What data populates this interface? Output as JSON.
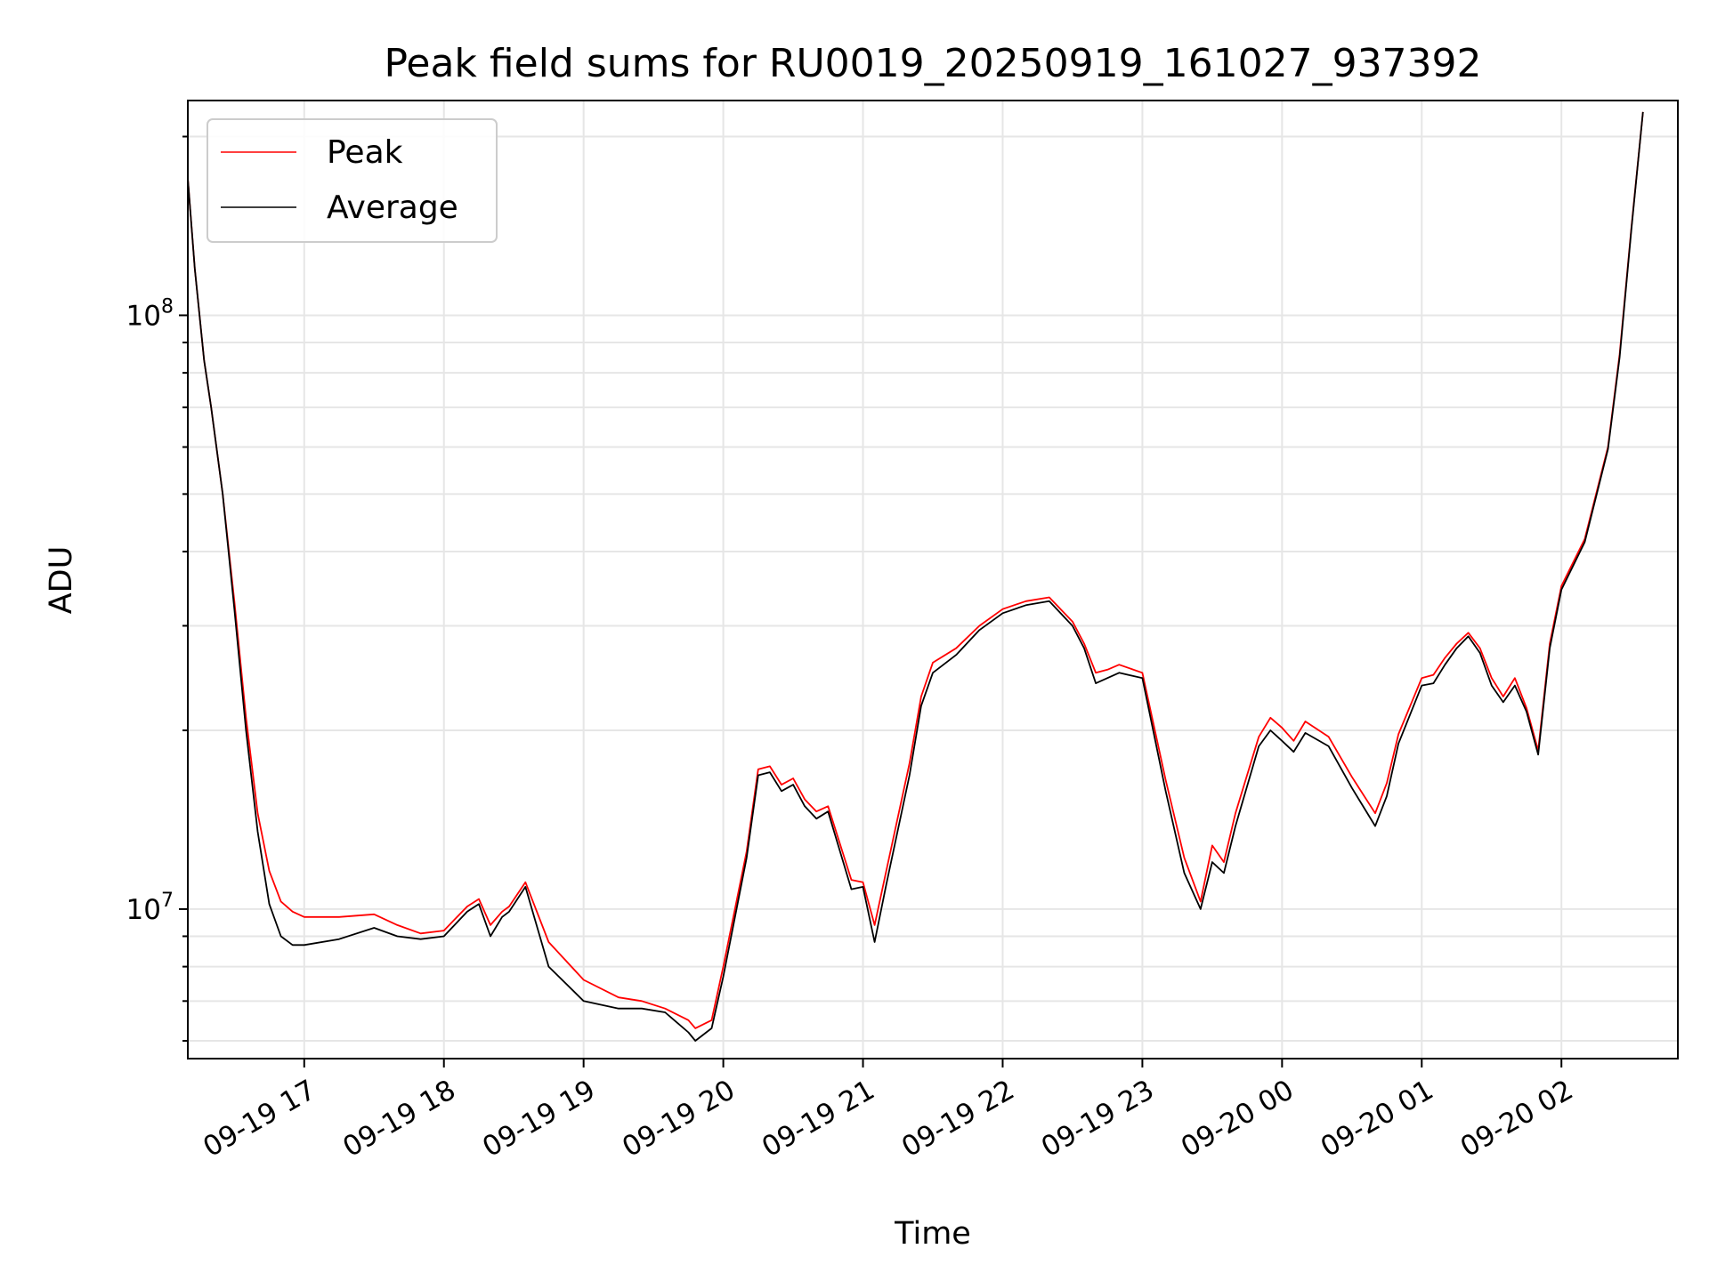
{
  "chart_data": {
    "type": "line",
    "title": "Peak field sums for RU0019_20250919_161027_937392",
    "xlabel": "Time",
    "ylabel": "ADU",
    "y_scale": "log",
    "grid": true,
    "legend_position": "top-left",
    "xlim": [
      "2025-09-19 16:10",
      "2025-09-20 02:50"
    ],
    "ylim": [
      5600000,
      230000000
    ],
    "x_tick_labels": [
      "09-19 17",
      "09-19 18",
      "09-19 19",
      "09-19 20",
      "09-19 21",
      "09-19 22",
      "09-19 23",
      "09-20 00",
      "09-20 01",
      "09-20 02"
    ],
    "y_tick_labels": [
      "10^7",
      "10^8"
    ],
    "series": [
      {
        "name": "Peak",
        "color": "#ff0000",
        "x": [
          "2025-09-19 16:10",
          "2025-09-19 16:13",
          "2025-09-19 16:17",
          "2025-09-19 16:20",
          "2025-09-19 16:25",
          "2025-09-19 16:30",
          "2025-09-19 16:35",
          "2025-09-19 16:40",
          "2025-09-19 16:45",
          "2025-09-19 16:50",
          "2025-09-19 16:55",
          "2025-09-19 17:00",
          "2025-09-19 17:15",
          "2025-09-19 17:30",
          "2025-09-19 17:40",
          "2025-09-19 17:50",
          "2025-09-19 18:00",
          "2025-09-19 18:10",
          "2025-09-19 18:15",
          "2025-09-19 18:20",
          "2025-09-19 18:25",
          "2025-09-19 18:28",
          "2025-09-19 18:35",
          "2025-09-19 18:45",
          "2025-09-19 19:00",
          "2025-09-19 19:15",
          "2025-09-19 19:25",
          "2025-09-19 19:35",
          "2025-09-19 19:45",
          "2025-09-19 19:48",
          "2025-09-19 19:55",
          "2025-09-19 20:00",
          "2025-09-19 20:10",
          "2025-09-19 20:15",
          "2025-09-19 20:20",
          "2025-09-19 20:25",
          "2025-09-19 20:30",
          "2025-09-19 20:35",
          "2025-09-19 20:40",
          "2025-09-19 20:45",
          "2025-09-19 20:55",
          "2025-09-19 21:00",
          "2025-09-19 21:05",
          "2025-09-19 21:10",
          "2025-09-19 21:20",
          "2025-09-19 21:25",
          "2025-09-19 21:30",
          "2025-09-19 21:40",
          "2025-09-19 21:50",
          "2025-09-19 22:00",
          "2025-09-19 22:10",
          "2025-09-19 22:20",
          "2025-09-19 22:30",
          "2025-09-19 22:35",
          "2025-09-19 22:40",
          "2025-09-19 22:45",
          "2025-09-19 22:50",
          "2025-09-19 23:00",
          "2025-09-19 23:10",
          "2025-09-19 23:18",
          "2025-09-19 23:25",
          "2025-09-19 23:30",
          "2025-09-19 23:35",
          "2025-09-19 23:40",
          "2025-09-19 23:50",
          "2025-09-19 23:55",
          "2025-09-20 00:00",
          "2025-09-20 00:05",
          "2025-09-20 00:10",
          "2025-09-20 00:20",
          "2025-09-20 00:30",
          "2025-09-20 00:40",
          "2025-09-20 00:45",
          "2025-09-20 00:50",
          "2025-09-20 01:00",
          "2025-09-20 01:05",
          "2025-09-20 01:10",
          "2025-09-20 01:15",
          "2025-09-20 01:20",
          "2025-09-20 01:25",
          "2025-09-20 01:30",
          "2025-09-20 01:35",
          "2025-09-20 01:40",
          "2025-09-20 01:45",
          "2025-09-20 01:50",
          "2025-09-20 01:55",
          "2025-09-20 02:00",
          "2025-09-20 02:10",
          "2025-09-20 02:20",
          "2025-09-20 02:25",
          "2025-09-20 02:30",
          "2025-09-20 02:35"
        ],
        "values": [
          170000000,
          120000000,
          84000000,
          70000000,
          50000000,
          33000000,
          21000000,
          14500000,
          11600000,
          10300000,
          9900000,
          9700000,
          9700000,
          9800000,
          9400000,
          9100000,
          9200000,
          10100000,
          10400000,
          9400000,
          9900000,
          10100000,
          11100000,
          8800000,
          7600000,
          7100000,
          7000000,
          6800000,
          6500000,
          6300000,
          6500000,
          8000000,
          12500000,
          17200000,
          17400000,
          16200000,
          16600000,
          15300000,
          14600000,
          14900000,
          11200000,
          11100000,
          9400000,
          11600000,
          17600000,
          22800000,
          26000000,
          27500000,
          30000000,
          32000000,
          33000000,
          33500000,
          30500000,
          28000000,
          25000000,
          25300000,
          25800000,
          25000000,
          16500000,
          12200000,
          10300000,
          12800000,
          12000000,
          14500000,
          19500000,
          21000000,
          20200000,
          19200000,
          20700000,
          19500000,
          16700000,
          14500000,
          16300000,
          19700000,
          24500000,
          24800000,
          26500000,
          28000000,
          29200000,
          27500000,
          24500000,
          22800000,
          24500000,
          21800000,
          18500000,
          28000000,
          35000000,
          42000000,
          60000000,
          86000000,
          140000000,
          220000000
        ]
      },
      {
        "name": "Average",
        "color": "#000000",
        "x": [
          "2025-09-19 16:10",
          "2025-09-19 16:13",
          "2025-09-19 16:17",
          "2025-09-19 16:20",
          "2025-09-19 16:25",
          "2025-09-19 16:30",
          "2025-09-19 16:35",
          "2025-09-19 16:40",
          "2025-09-19 16:45",
          "2025-09-19 16:50",
          "2025-09-19 16:55",
          "2025-09-19 17:00",
          "2025-09-19 17:15",
          "2025-09-19 17:30",
          "2025-09-19 17:40",
          "2025-09-19 17:50",
          "2025-09-19 18:00",
          "2025-09-19 18:10",
          "2025-09-19 18:15",
          "2025-09-19 18:20",
          "2025-09-19 18:25",
          "2025-09-19 18:28",
          "2025-09-19 18:35",
          "2025-09-19 18:45",
          "2025-09-19 19:00",
          "2025-09-19 19:15",
          "2025-09-19 19:25",
          "2025-09-19 19:35",
          "2025-09-19 19:45",
          "2025-09-19 19:48",
          "2025-09-19 19:55",
          "2025-09-19 20:00",
          "2025-09-19 20:10",
          "2025-09-19 20:15",
          "2025-09-19 20:20",
          "2025-09-19 20:25",
          "2025-09-19 20:30",
          "2025-09-19 20:35",
          "2025-09-19 20:40",
          "2025-09-19 20:45",
          "2025-09-19 20:55",
          "2025-09-19 21:00",
          "2025-09-19 21:05",
          "2025-09-19 21:10",
          "2025-09-19 21:20",
          "2025-09-19 21:25",
          "2025-09-19 21:30",
          "2025-09-19 21:40",
          "2025-09-19 21:50",
          "2025-09-19 22:00",
          "2025-09-19 22:10",
          "2025-09-19 22:20",
          "2025-09-19 22:30",
          "2025-09-19 22:35",
          "2025-09-19 22:40",
          "2025-09-19 22:45",
          "2025-09-19 22:50",
          "2025-09-19 23:00",
          "2025-09-19 23:10",
          "2025-09-19 23:18",
          "2025-09-19 23:25",
          "2025-09-19 23:30",
          "2025-09-19 23:35",
          "2025-09-19 23:40",
          "2025-09-19 23:50",
          "2025-09-19 23:55",
          "2025-09-20 00:00",
          "2025-09-20 00:05",
          "2025-09-20 00:10",
          "2025-09-20 00:20",
          "2025-09-20 00:30",
          "2025-09-20 00:40",
          "2025-09-20 00:45",
          "2025-09-20 00:50",
          "2025-09-20 01:00",
          "2025-09-20 01:05",
          "2025-09-20 01:10",
          "2025-09-20 01:15",
          "2025-09-20 01:20",
          "2025-09-20 01:25",
          "2025-09-20 01:30",
          "2025-09-20 01:35",
          "2025-09-20 01:40",
          "2025-09-20 01:45",
          "2025-09-20 01:50",
          "2025-09-20 01:55",
          "2025-09-20 02:00",
          "2025-09-20 02:10",
          "2025-09-20 02:20",
          "2025-09-20 02:25",
          "2025-09-20 02:30",
          "2025-09-20 02:35"
        ],
        "values": [
          170000000,
          120000000,
          84000000,
          70000000,
          50000000,
          32000000,
          20000000,
          13500000,
          10200000,
          9000000,
          8700000,
          8700000,
          8900000,
          9300000,
          9000000,
          8900000,
          9000000,
          9900000,
          10200000,
          9000000,
          9700000,
          9900000,
          10900000,
          8000000,
          7000000,
          6800000,
          6800000,
          6700000,
          6200000,
          6000000,
          6300000,
          7700000,
          12200000,
          16800000,
          17000000,
          15800000,
          16200000,
          14900000,
          14200000,
          14600000,
          10800000,
          10900000,
          8800000,
          11000000,
          16800000,
          22000000,
          25000000,
          26800000,
          29500000,
          31500000,
          32500000,
          33000000,
          30000000,
          27500000,
          24000000,
          24500000,
          25000000,
          24500000,
          15800000,
          11500000,
          10000000,
          12000000,
          11500000,
          13800000,
          18800000,
          20000000,
          19200000,
          18400000,
          19800000,
          18800000,
          16000000,
          13800000,
          15500000,
          19000000,
          23800000,
          24000000,
          25800000,
          27500000,
          28800000,
          27000000,
          23800000,
          22300000,
          23800000,
          21500000,
          18200000,
          27500000,
          34500000,
          41500000,
          59500000,
          85000000,
          139000000,
          220000000
        ]
      }
    ]
  }
}
